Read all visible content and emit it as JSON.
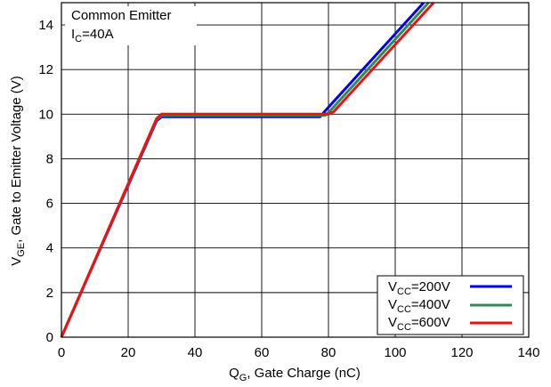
{
  "chart_data": {
    "type": "line",
    "xlabel": {
      "main": "Q",
      "sub": "G",
      "rest": ", Gate Charge (nC)"
    },
    "ylabel": {
      "main": "V",
      "sub": "GE",
      "rest": ", Gate to Emitter Voltage (V)"
    },
    "xlim": [
      0,
      140
    ],
    "ylim": [
      0,
      15
    ],
    "xticks": [
      0,
      20,
      40,
      60,
      80,
      100,
      120,
      140
    ],
    "yticks": [
      0,
      2,
      4,
      6,
      8,
      10,
      12,
      14
    ],
    "grid": true,
    "legend_position": "bottom-right",
    "annotations": {
      "line1": "Common Emitter",
      "line2": {
        "main": "I",
        "sub": "C",
        "rest": "=40A"
      }
    },
    "series": [
      {
        "name": {
          "main": "V",
          "sub": "CC",
          "rest": "=200V"
        },
        "color": "#0000ee",
        "x": [
          0,
          28.5,
          30,
          77.5,
          79,
          108.5
        ],
        "y": [
          0,
          9.7,
          9.88,
          9.88,
          10.15,
          15
        ]
      },
      {
        "name": {
          "main": "V",
          "sub": "CC",
          "rest": "=400V"
        },
        "color": "#2e8b57",
        "x": [
          0,
          28.5,
          30,
          79,
          80.5,
          110
        ],
        "y": [
          0,
          9.75,
          9.94,
          9.94,
          10.15,
          15
        ]
      },
      {
        "name": {
          "main": "V",
          "sub": "CC",
          "rest": "=600V"
        },
        "color": "#ee1111",
        "x": [
          0,
          28.5,
          30,
          80,
          81.5,
          111.5
        ],
        "y": [
          0,
          9.8,
          10.0,
          10.0,
          10.1,
          15
        ]
      }
    ]
  }
}
